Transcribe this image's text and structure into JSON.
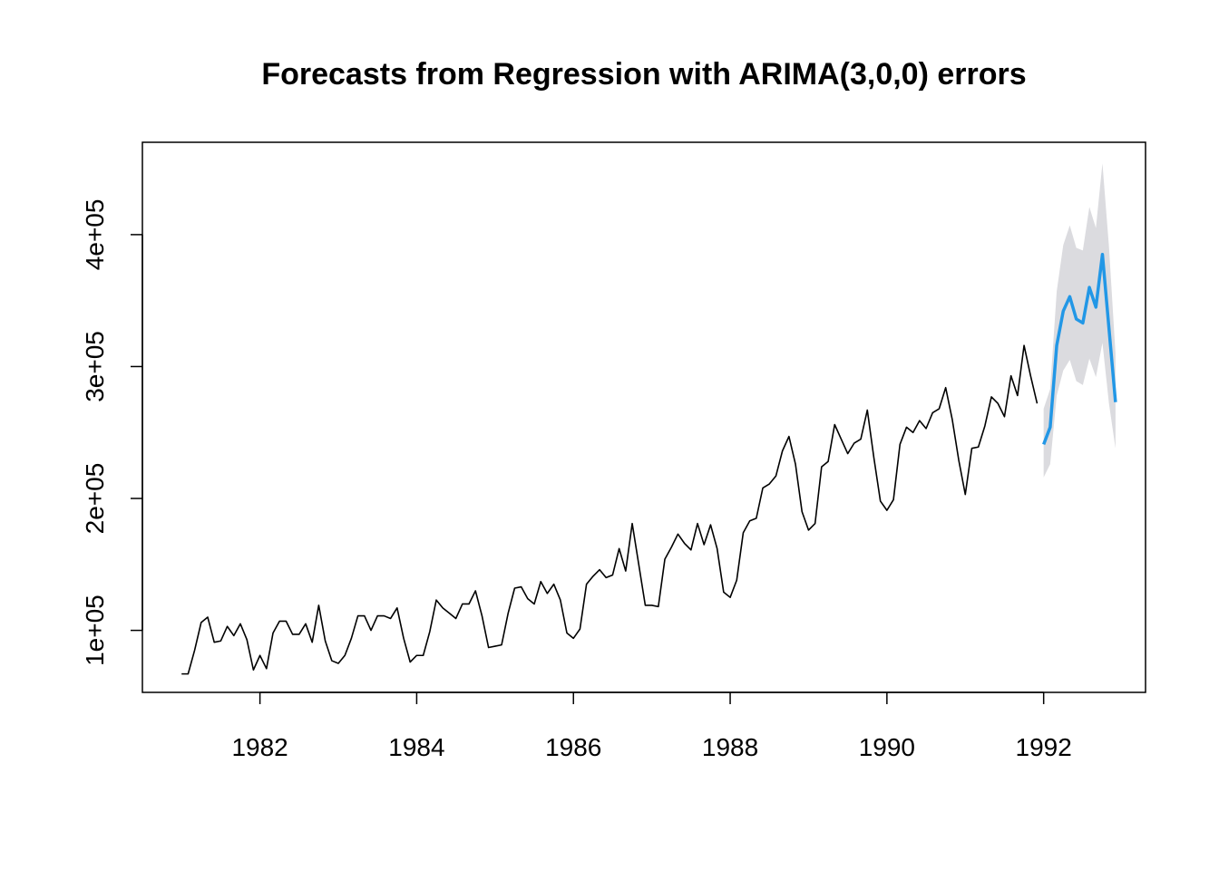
{
  "chart_data": {
    "type": "line",
    "title": "Forecasts from Regression with ARIMA(3,0,0) errors",
    "xlabel": "",
    "ylabel": "",
    "xlim": [
      1980.5,
      1993.3
    ],
    "ylim": [
      53000,
      470000
    ],
    "x_ticks": [
      1982,
      1984,
      1986,
      1988,
      1990,
      1992
    ],
    "x_tick_labels": [
      "1982",
      "1984",
      "1986",
      "1988",
      "1990",
      "1992"
    ],
    "y_ticks": [
      100000,
      200000,
      300000,
      400000
    ],
    "y_tick_labels": [
      "1e+05",
      "2e+05",
      "3e+05",
      "4e+05"
    ],
    "grid": false,
    "legend": "none",
    "colors": {
      "history": "#000000",
      "forecast": "#2297E6",
      "interval": "#DBDBDF"
    },
    "series": [
      {
        "role": "history",
        "x_start": 1981.0,
        "frequency": 12,
        "values": [
          67000,
          67000,
          85000,
          106000,
          110000,
          91000,
          92000,
          103000,
          96000,
          105000,
          93000,
          70000,
          81000,
          71000,
          98000,
          107000,
          107000,
          97000,
          97000,
          105000,
          91000,
          119000,
          92000,
          77000,
          75000,
          81000,
          94000,
          111000,
          111000,
          100000,
          111000,
          111000,
          109000,
          117000,
          94000,
          76000,
          81000,
          81000,
          99000,
          123000,
          117000,
          113000,
          109000,
          120000,
          120000,
          130000,
          111000,
          87000,
          88000,
          89000,
          113000,
          132000,
          133000,
          124000,
          120000,
          137000,
          128000,
          135000,
          123000,
          98000,
          94000,
          101000,
          135000,
          141000,
          146000,
          140000,
          142000,
          162000,
          145000,
          181000,
          150000,
          119000,
          119000,
          118000,
          154000,
          163000,
          173000,
          166000,
          161000,
          181000,
          165000,
          180000,
          162000,
          129000,
          125000,
          138000,
          174000,
          183000,
          185000,
          208000,
          211000,
          217000,
          236000,
          247000,
          226000,
          190000,
          176000,
          181000,
          224000,
          228000,
          256000,
          245000,
          234000,
          242000,
          245000,
          267000,
          231000,
          198000,
          191000,
          199000,
          241000,
          254000,
          250000,
          259000,
          253000,
          265000,
          268000,
          284000,
          260000,
          229000,
          203000,
          238000,
          239000,
          255000,
          277000,
          272000,
          262000,
          293000,
          278000,
          316000,
          293000,
          272000
        ]
      },
      {
        "role": "forecast",
        "x_start": 1992.0,
        "frequency": 12,
        "values": [
          241000,
          254000,
          316000,
          342000,
          353000,
          336000,
          333000,
          360000,
          345000,
          385000,
          329000,
          273000
        ],
        "lower": [
          216000,
          226000,
          278000,
          297000,
          305000,
          289000,
          286000,
          306000,
          292000,
          318000,
          272000,
          238000
        ],
        "upper": [
          268000,
          283000,
          357000,
          392000,
          407000,
          390000,
          388000,
          421000,
          405000,
          454000,
          391000,
          310000
        ]
      }
    ]
  }
}
